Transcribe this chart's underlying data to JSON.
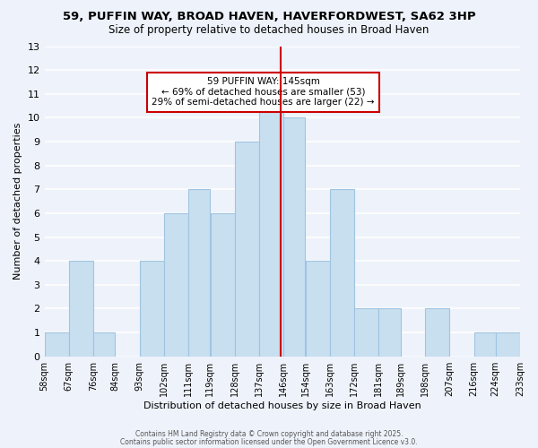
{
  "title": "59, PUFFIN WAY, BROAD HAVEN, HAVERFORDWEST, SA62 3HP",
  "subtitle": "Size of property relative to detached houses in Broad Haven",
  "xlabel": "Distribution of detached houses by size in Broad Haven",
  "ylabel": "Number of detached properties",
  "bar_color": "#c8dff0",
  "bar_edge_color": "#a0c4e0",
  "bin_lefts": [
    58,
    67,
    76,
    84,
    93,
    102,
    111,
    119,
    128,
    137,
    146,
    154,
    163,
    172,
    181,
    189,
    198,
    207,
    216,
    224
  ],
  "bin_rights": [
    67,
    76,
    84,
    93,
    102,
    111,
    119,
    128,
    137,
    146,
    154,
    163,
    172,
    181,
    189,
    198,
    207,
    216,
    224,
    233
  ],
  "counts": [
    1,
    4,
    1,
    0,
    4,
    6,
    7,
    6,
    9,
    11,
    10,
    4,
    7,
    2,
    2,
    0,
    2,
    0,
    1,
    1
  ],
  "tick_positions": [
    58,
    67,
    76,
    84,
    93,
    102,
    111,
    119,
    128,
    137,
    146,
    154,
    163,
    172,
    181,
    189,
    198,
    207,
    216,
    224,
    233
  ],
  "tick_labels": [
    "58sqm",
    "67sqm",
    "76sqm",
    "84sqm",
    "93sqm",
    "102sqm",
    "111sqm",
    "119sqm",
    "128sqm",
    "137sqm",
    "146sqm",
    "154sqm",
    "163sqm",
    "172sqm",
    "181sqm",
    "189sqm",
    "198sqm",
    "207sqm",
    "216sqm",
    "224sqm",
    "233sqm"
  ],
  "vline_x": 145,
  "vline_color": "#cc0000",
  "ylim": [
    0,
    13
  ],
  "yticks": [
    0,
    1,
    2,
    3,
    4,
    5,
    6,
    7,
    8,
    9,
    10,
    11,
    12,
    13
  ],
  "annotation_title": "59 PUFFIN WAY: 145sqm",
  "annotation_line1": "← 69% of detached houses are smaller (53)",
  "annotation_line2": "29% of semi-detached houses are larger (22) →",
  "annotation_box_color": "#ffffff",
  "annotation_box_edge": "#cc0000",
  "footer1": "Contains HM Land Registry data © Crown copyright and database right 2025.",
  "footer2": "Contains public sector information licensed under the Open Government Licence v3.0.",
  "background_color": "#eef3fb",
  "grid_color": "#ffffff"
}
